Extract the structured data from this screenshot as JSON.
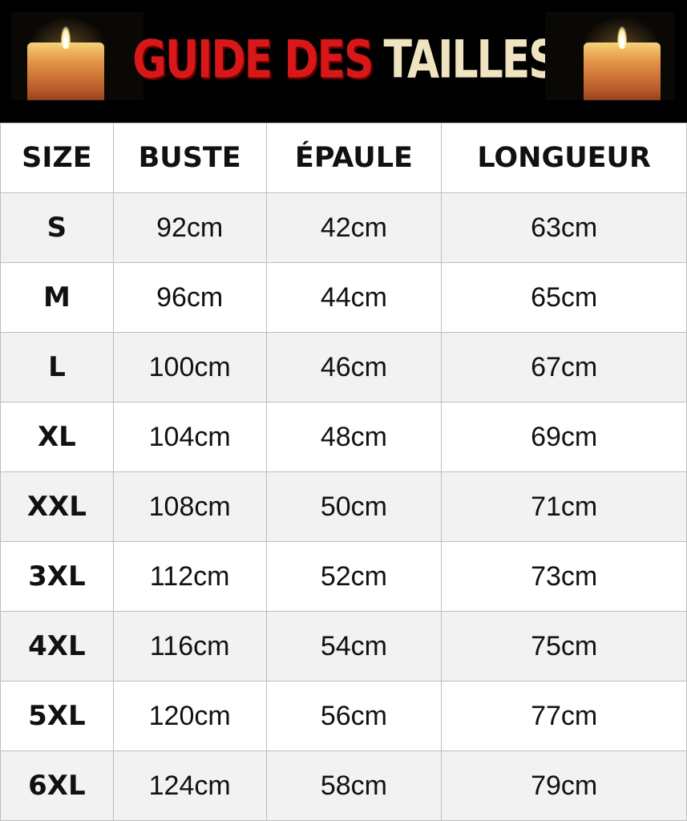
{
  "banner": {
    "title_red": "GUIDE DES",
    "title_cream": "TAILLES"
  },
  "colors": {
    "title_red": "#d81818",
    "title_cream": "#efe4bf",
    "row_alt": "#f2f2f2",
    "banner_bg": "#000000"
  },
  "table": {
    "headers": [
      "SIZE",
      "BUSTE",
      "ÉPAULE",
      "LONGUEUR"
    ],
    "rows": [
      [
        "S",
        "92cm",
        "42cm",
        "63cm"
      ],
      [
        "M",
        "96cm",
        "44cm",
        "65cm"
      ],
      [
        "L",
        "100cm",
        "46cm",
        "67cm"
      ],
      [
        "XL",
        "104cm",
        "48cm",
        "69cm"
      ],
      [
        "XXL",
        "108cm",
        "50cm",
        "71cm"
      ],
      [
        "3XL",
        "112cm",
        "52cm",
        "73cm"
      ],
      [
        "4XL",
        "116cm",
        "54cm",
        "75cm"
      ],
      [
        "5XL",
        "120cm",
        "56cm",
        "77cm"
      ],
      [
        "6XL",
        "124cm",
        "58cm",
        "79cm"
      ]
    ]
  }
}
